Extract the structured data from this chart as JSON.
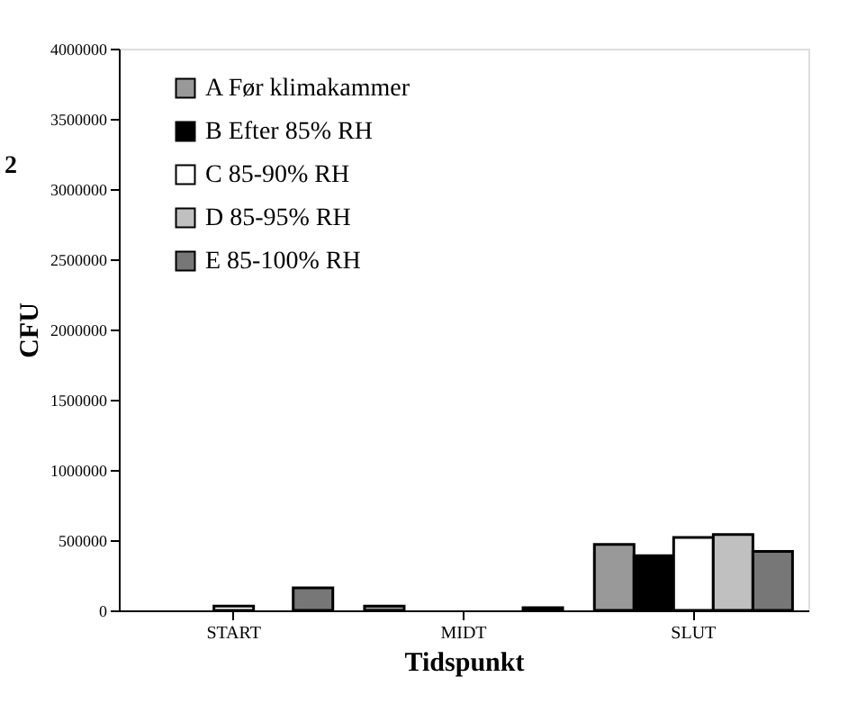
{
  "chart_data": {
    "type": "bar",
    "xlabel": "Tidspunkt",
    "ylabel": "CFU",
    "annotations": [
      "2"
    ],
    "categories": [
      "START",
      "MIDT",
      "SLUT"
    ],
    "series": [
      {
        "name": "A Før klimakammer",
        "color": "#999999",
        "values": [
          null,
          30000,
          470000
        ]
      },
      {
        "name": "B Efter 85% RH",
        "color": "#000000",
        "values": [
          null,
          null,
          390000
        ]
      },
      {
        "name": "C 85-90% RH",
        "color": "#ffffff",
        "values": [
          30000,
          null,
          520000
        ]
      },
      {
        "name": "D 85-95% RH",
        "color": "#c0c0c0",
        "values": [
          null,
          null,
          540000
        ]
      },
      {
        "name": "E 85-100% RH",
        "color": "#777777",
        "values": [
          160000,
          20000,
          420000
        ]
      }
    ],
    "ylim": [
      0,
      4000000
    ],
    "yticks": [
      0,
      500000,
      1000000,
      1500000,
      2000000,
      2500000,
      3000000,
      3500000,
      4000000
    ],
    "grid": false,
    "legend": "top left"
  }
}
